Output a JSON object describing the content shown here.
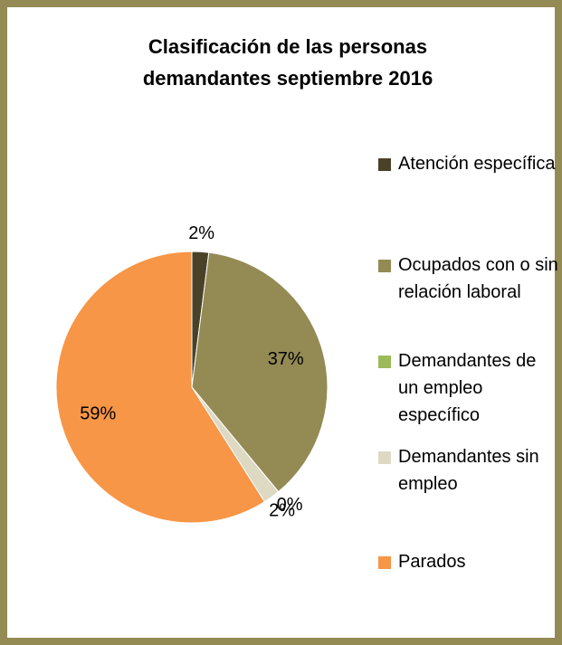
{
  "chart_data": {
    "type": "pie",
    "title": "Clasificación de las personas demandantes  septiembre 2016",
    "categories": [
      "Atención específica",
      "Ocupados con o sin relación laboral",
      "Demandantes de un empleo específico",
      "Demandantes sin empleo",
      "Parados"
    ],
    "values": [
      2,
      37,
      0,
      2,
      59
    ],
    "value_labels": [
      "2%",
      "37%",
      "0%",
      "2%",
      "59%"
    ],
    "colors": [
      "#4a4228",
      "#948a54",
      "#9bbb59",
      "#ddd9c3",
      "#f79646"
    ],
    "legend": "right"
  }
}
